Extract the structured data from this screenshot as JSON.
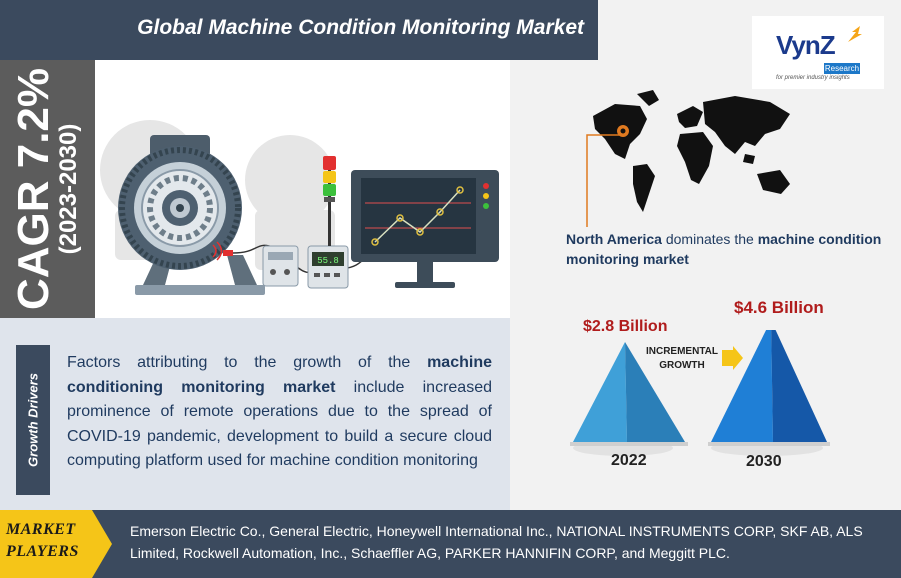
{
  "header": {
    "title": "Global Machine Condition Monitoring Market"
  },
  "cagr": {
    "value": "CAGR 7.2%",
    "period": "(2023-2030)"
  },
  "logo": {
    "name": "VynZ",
    "sub": "Research",
    "tagline": "for premier industry insights"
  },
  "region": {
    "highlight": "North America",
    "text_mid": " dominates the ",
    "highlight2": "machine condition monitoring market"
  },
  "growth": {
    "value_2022": "$2.8 Billion",
    "value_2030": "$4.6 Billion",
    "incremental_line1": "INCREMENTAL",
    "incremental_line2": "GROWTH",
    "year_2022": "2022",
    "year_2030": "2030"
  },
  "drivers": {
    "label": "Growth Drivers",
    "text_pre": "Factors attributing to the growth of the ",
    "text_bold": "machine conditioning monitoring market",
    "text_post": " include increased prominence of remote operations due to the spread of COVID-19 pandemic, development to build a secure cloud computing platform used for machine condition monitoring"
  },
  "players": {
    "label_line1": "MARKET",
    "label_line2": "PLAYERS",
    "text": "Emerson Electric Co., General Electric, Honeywell International Inc., NATIONAL INSTRUMENTS CORP, SKF AB, ALS Limited, Rockwell Automation, Inc., Schaeffler AG, PARKER HANNIFIN CORP, and Meggitt PLC."
  },
  "monitor": {
    "display_value": "55.8"
  },
  "colors": {
    "navy": "#3b4a5e",
    "gray": "#5c5c5c",
    "accent_yellow": "#f5c518",
    "value_red": "#b01c1c",
    "pyramid_light": "#3fa0d8",
    "pyramid_dark": "#1a6fc6"
  }
}
